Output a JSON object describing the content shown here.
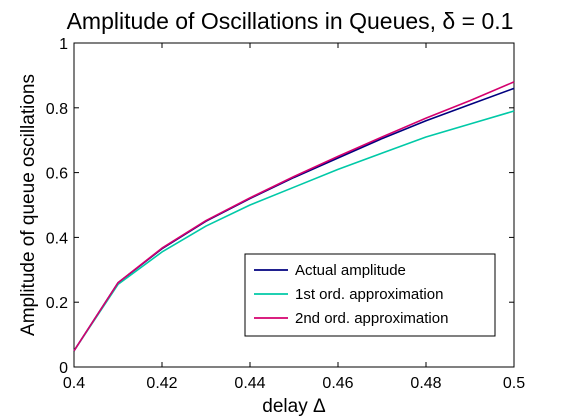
{
  "chart_data": {
    "type": "line",
    "title": "Amplitude of Oscillations in Queues, δ = 0.1",
    "xlabel": "delay Δ",
    "ylabel": "Amplitude of queue oscillations",
    "xlim": [
      0.4,
      0.5
    ],
    "ylim": [
      0,
      1
    ],
    "xticks": [
      0.4,
      0.42,
      0.44,
      0.46,
      0.48,
      0.5
    ],
    "xtick_labels": [
      "0.4",
      "0.42",
      "0.44",
      "0.46",
      "0.48",
      "0.5"
    ],
    "yticks": [
      0,
      0.2,
      0.4,
      0.6,
      0.8,
      1
    ],
    "ytick_labels": [
      "0",
      "0.2",
      "0.4",
      "0.6",
      "0.8",
      "1"
    ],
    "grid": false,
    "legend_position": "bottom-right",
    "x": [
      0.4,
      0.41,
      0.42,
      0.43,
      0.44,
      0.45,
      0.46,
      0.47,
      0.48,
      0.49,
      0.5
    ],
    "series": [
      {
        "name": "Actual amplitude",
        "color": "#00007f",
        "values": [
          0.05,
          0.26,
          0.365,
          0.45,
          0.52,
          0.585,
          0.645,
          0.705,
          0.76,
          0.81,
          0.86
        ]
      },
      {
        "name": "1st ord. approximation",
        "color": "#00c9a7",
        "values": [
          0.05,
          0.255,
          0.355,
          0.435,
          0.5,
          0.555,
          0.61,
          0.66,
          0.71,
          0.75,
          0.79
        ]
      },
      {
        "name": "2nd ord. approximation",
        "color": "#d4006e",
        "values": [
          0.05,
          0.26,
          0.367,
          0.452,
          0.522,
          0.588,
          0.65,
          0.71,
          0.768,
          0.822,
          0.88
        ]
      }
    ]
  }
}
